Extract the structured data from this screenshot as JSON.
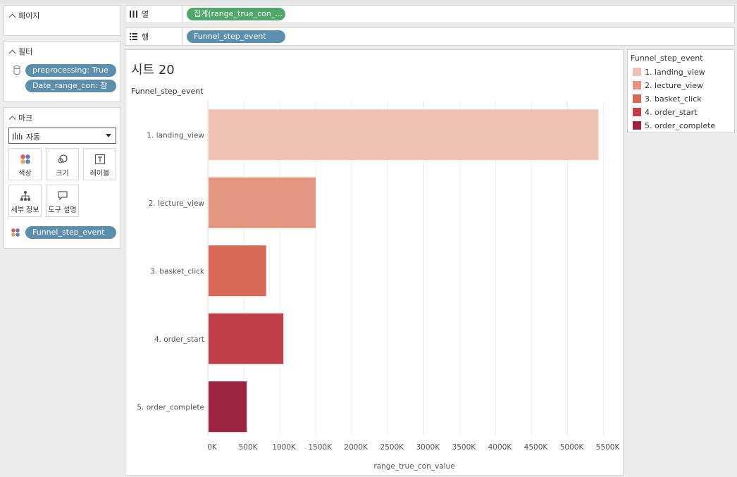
{
  "pages_card": {
    "title": "페이지"
  },
  "filters_card": {
    "title": "필터",
    "filters": [
      "preprocessing: True",
      "Date_range_con: 참"
    ]
  },
  "marks_card": {
    "title": "마크",
    "mark_type": "자동",
    "buttons": {
      "color": "색상",
      "size": "크기",
      "label": "레이블",
      "detail": "세부 정보",
      "tooltip": "도구 설명"
    },
    "color_field": "Funnel_step_event"
  },
  "columns_shelf": {
    "label": "열",
    "pill": "집계(range_true_con_..."
  },
  "rows_shelf": {
    "label": "행",
    "pill": "Funnel_step_event"
  },
  "sheet": {
    "title": "시트 20",
    "row_header": "Funnel_step_event"
  },
  "legend": {
    "title": "Funnel_step_event",
    "items": [
      {
        "label": "1. landing_view",
        "color": "#f0c2b6"
      },
      {
        "label": "2. lecture_view",
        "color": "#e49580"
      },
      {
        "label": "3. basket_click",
        "color": "#d86858"
      },
      {
        "label": "4. order_start",
        "color": "#c0404a"
      },
      {
        "label": "5. order_complete",
        "color": "#9c2440"
      }
    ]
  },
  "chart_data": {
    "type": "bar",
    "orientation": "horizontal",
    "categories": [
      "1. landing_view",
      "2. lecture_view",
      "3. basket_click",
      "4. order_start",
      "5. order_complete"
    ],
    "values": [
      5430000,
      1500000,
      810000,
      1050000,
      540000
    ],
    "colors": [
      "#f0c2b6",
      "#e49580",
      "#d86858",
      "#c0404a",
      "#9c2440"
    ],
    "xlabel": "range_true_con_value",
    "ylabel": "Funnel_step_event",
    "xlim": [
      0,
      5700000
    ],
    "xticks": [
      0,
      500000,
      1000000,
      1500000,
      2000000,
      2500000,
      3000000,
      3500000,
      4000000,
      4500000,
      5000000,
      5500000
    ],
    "xtick_labels": [
      "0K",
      "500K",
      "1000K",
      "1500K",
      "2000K",
      "2500K",
      "3000K",
      "3500K",
      "4000K",
      "4500K",
      "5000K",
      "5500K"
    ],
    "grid": true
  }
}
